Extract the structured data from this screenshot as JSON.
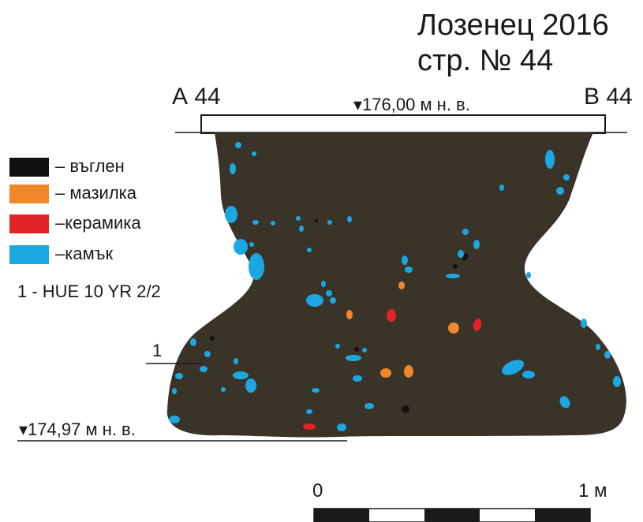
{
  "title": {
    "line1": "Лозенец 2016",
    "line2": "стр. № 44"
  },
  "section": {
    "left_label": "А 44",
    "right_label": "В 44"
  },
  "elevation": {
    "top": "▾176,00 м н. в.",
    "bottom": "▾174,97 м н. в."
  },
  "soil_layer_label": "1",
  "soil_description": "1 - HUE 10 YR 2/2",
  "legend": [
    {
      "label": "– въглен",
      "color": "#111111",
      "name": "charcoal"
    },
    {
      "label": "– мазилка",
      "color": "#f0872a",
      "name": "plaster"
    },
    {
      "label": "–керамика",
      "color": "#e4222a",
      "name": "ceramics"
    },
    {
      "label": "–камък",
      "color": "#1ba7e1",
      "name": "stone"
    }
  ],
  "scale": {
    "start": "0",
    "end": "1 м"
  },
  "colors": {
    "fill": "#3a3328",
    "stone": "#1ba7e1",
    "plaster": "#f0872a",
    "ceramics": "#e4222a",
    "charcoal": "#111111"
  }
}
